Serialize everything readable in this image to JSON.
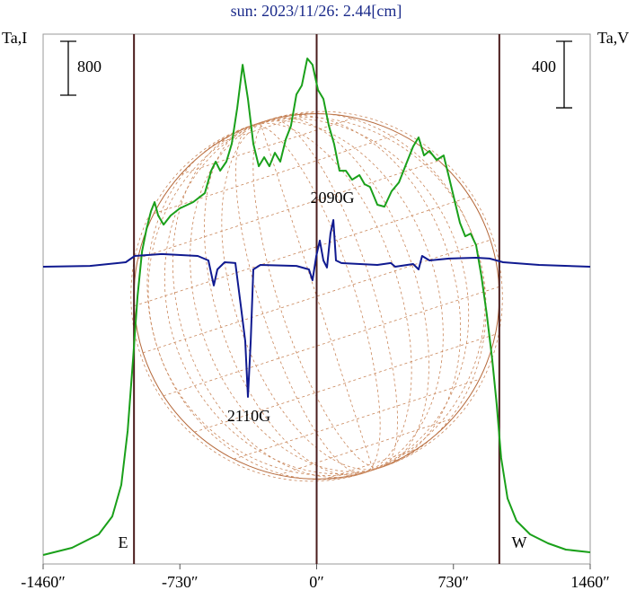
{
  "chart_data": {
    "type": "line",
    "title": "sun: 2023/11/26: 2.44[cm]",
    "y_label": "Ta,I",
    "y2_label": "Ta,V",
    "y_scale_bar": 800,
    "y2_scale_bar": 400,
    "xlim": [
      -1460,
      1460
    ],
    "xticks": [
      {
        "value": -1460,
        "label": "-1460″"
      },
      {
        "value": -730,
        "label": "-730″"
      },
      {
        "value": 0,
        "label": "0″"
      },
      {
        "value": 730,
        "label": "730″"
      },
      {
        "value": 1460,
        "label": "1460″"
      }
    ],
    "ylim": [
      -107,
      7760
    ],
    "y2lim": [
      -1788,
      1399
    ],
    "vlines": [
      -975,
      0,
      975
    ],
    "limb_labels": [
      "E",
      "W"
    ],
    "annotations": [
      "2090G",
      "2110G"
    ],
    "series": [
      {
        "name": "Ta,I",
        "color": "#1aa01a",
        "x": [
          -1460,
          -1306,
          -1163,
          -1091,
          -1043,
          -1009,
          -980,
          -956,
          -932,
          -908,
          -884,
          -865,
          -846,
          -817,
          -779,
          -731,
          -659,
          -597,
          -563,
          -539,
          -515,
          -482,
          -453,
          -424,
          -395,
          -367,
          -338,
          -309,
          -280,
          -252,
          -223,
          -194,
          -165,
          -137,
          -108,
          -79,
          -50,
          -22,
          7,
          36,
          65,
          93,
          122,
          156,
          189,
          228,
          256,
          285,
          324,
          362,
          400,
          439,
          477,
          515,
          544,
          573,
          602,
          640,
          678,
          707,
          736,
          765,
          793,
          822,
          851,
          880,
          908,
          937,
          961,
          985,
          1019,
          1067,
          1139,
          1235,
          1330,
          1460
        ],
        "values": [
          27,
          133,
          333,
          600,
          1067,
          1866,
          2933,
          3866,
          4532,
          4866,
          5132,
          5266,
          5066,
          4932,
          5066,
          5172,
          5266,
          5399,
          5732,
          5866,
          5732,
          5866,
          6132,
          6665,
          7305,
          6799,
          6132,
          5799,
          5932,
          5799,
          5999,
          5866,
          6199,
          6399,
          6865,
          6999,
          7398,
          7305,
          6932,
          6799,
          6399,
          6132,
          5732,
          5732,
          5599,
          5666,
          5532,
          5492,
          5226,
          5199,
          5426,
          5559,
          5826,
          6092,
          6226,
          5959,
          6026,
          5892,
          5959,
          5626,
          5292,
          4959,
          4759,
          4799,
          4626,
          4159,
          3599,
          2933,
          2266,
          1466,
          866,
          533,
          333,
          200,
          107,
          67
        ]
      },
      {
        "name": "Ta,V",
        "color": "#101a90",
        "axis": "y2",
        "x": [
          -1460,
          -1210,
          -1019,
          -971,
          -827,
          -635,
          -578,
          -549,
          -530,
          -491,
          -434,
          -405,
          -381,
          -367,
          -352,
          -338,
          -300,
          -108,
          -41,
          -22,
          -2,
          17,
          36,
          55,
          74,
          89,
          103,
          132,
          324,
          396,
          419,
          515,
          544,
          563,
          602,
          707,
          851,
          923,
          995,
          1187,
          1460
        ],
        "values": [
          0,
          5,
          27,
          65,
          76,
          65,
          38,
          -113,
          -16,
          27,
          22,
          -232,
          -448,
          -783,
          -448,
          -16,
          11,
          5,
          -16,
          -81,
          65,
          157,
          38,
          -5,
          200,
          281,
          38,
          22,
          11,
          22,
          0,
          16,
          -16,
          65,
          38,
          49,
          54,
          49,
          27,
          11,
          0
        ]
      }
    ]
  }
}
